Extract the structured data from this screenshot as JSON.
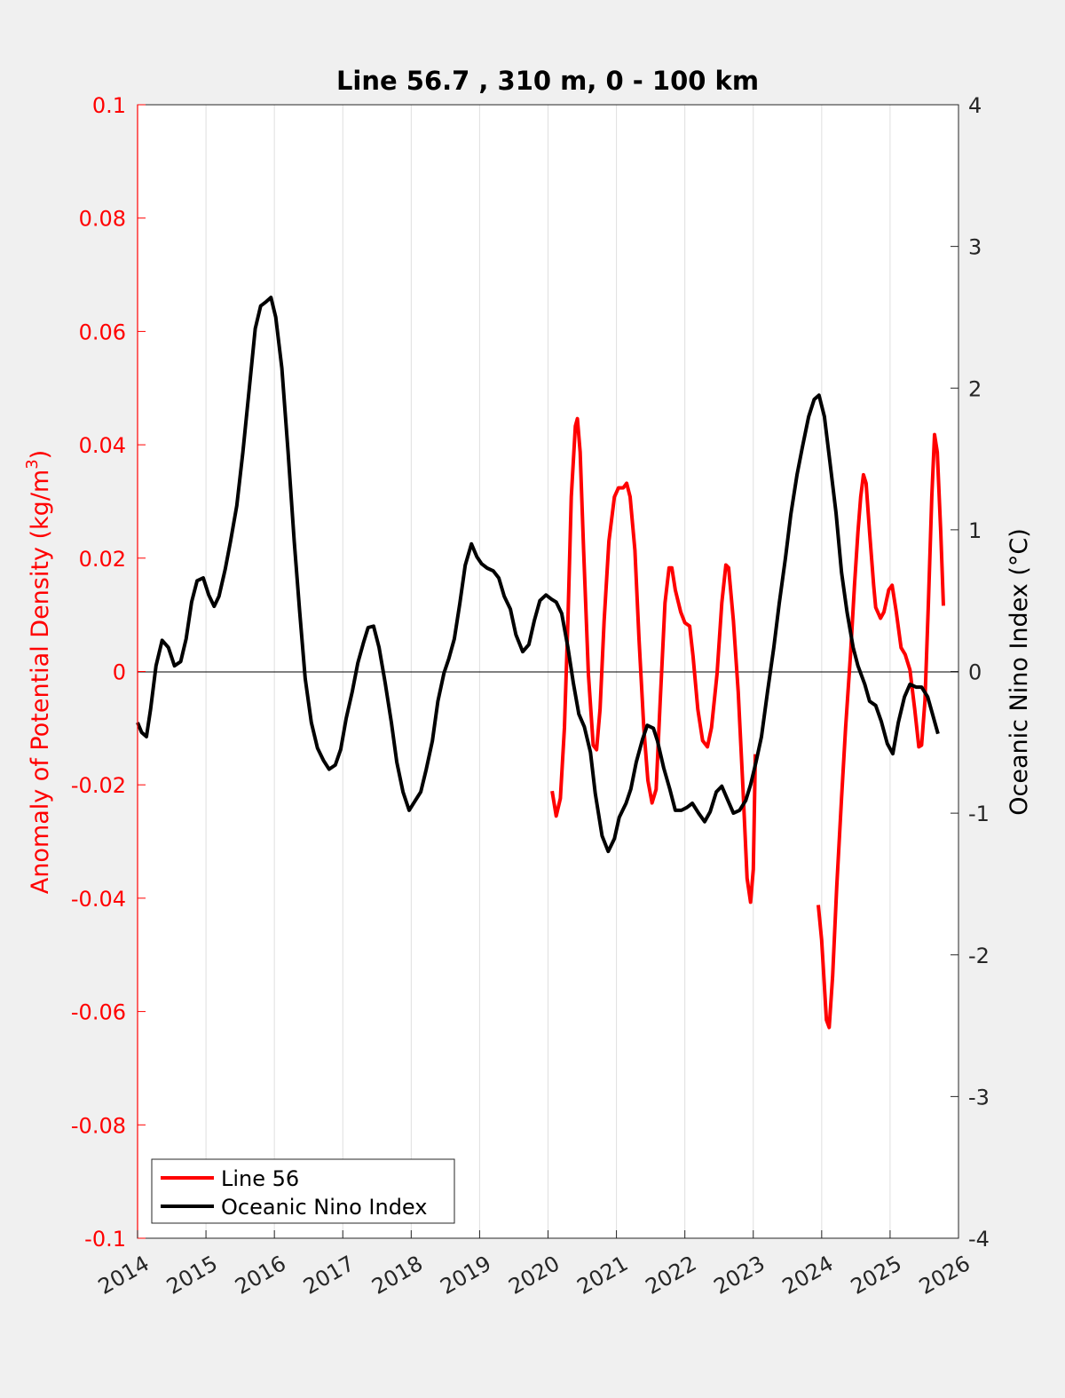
{
  "chart_data": {
    "type": "line",
    "title": "Line 56.7 , 310 m, 0 - 100 km",
    "xlabel": "",
    "ylabel_left": "Anomaly of Potential Density (kg/m^3)",
    "ylabel_left_main": "Anomaly of Potential Density (kg/m",
    "ylabel_left_sup": "3",
    "ylabel_left_close": ")",
    "ylabel_right": "Oceanic Nino Index (°C)",
    "xlim": [
      2014,
      2026
    ],
    "ylim_left": [
      -0.1,
      0.1
    ],
    "ylim_right": [
      -4,
      4
    ],
    "xticks": [
      "2014",
      "2015",
      "2016",
      "2017",
      "2018",
      "2019",
      "2020",
      "2021",
      "2022",
      "2023",
      "2024",
      "2025",
      "2026"
    ],
    "yticks_left": [
      "-0.1",
      "-0.08",
      "-0.06",
      "-0.04",
      "-0.02",
      "0",
      "0.02",
      "0.04",
      "0.06",
      "0.08",
      "0.1"
    ],
    "yticks_right": [
      "-4",
      "-3",
      "-2",
      "-1",
      "0",
      "1",
      "2",
      "3",
      "4"
    ],
    "grid": "vertical",
    "legend_position": "bottom-left",
    "colors": {
      "left_axis": "#ff0000",
      "line56": "#ff0000",
      "oni": "#000000"
    },
    "series": [
      {
        "name": "Line 56",
        "axis": "left",
        "segments": [
          [
            [
              2020.06,
              -0.0211
            ],
            [
              2020.12,
              -0.0255
            ],
            [
              2020.18,
              -0.0224
            ],
            [
              2020.24,
              -0.0099
            ],
            [
              2020.29,
              0.0089
            ],
            [
              2020.34,
              0.0308
            ],
            [
              2020.4,
              0.0433
            ],
            [
              2020.43,
              0.0446
            ],
            [
              2020.47,
              0.0387
            ],
            [
              2020.52,
              0.0214
            ],
            [
              2020.59,
              -0.0005
            ],
            [
              2020.66,
              -0.013
            ],
            [
              2020.71,
              -0.0138
            ],
            [
              2020.76,
              -0.0067
            ],
            [
              2020.82,
              0.0089
            ],
            [
              2020.89,
              0.023
            ],
            [
              2020.97,
              0.0308
            ],
            [
              2021.03,
              0.0324
            ],
            [
              2021.1,
              0.0324
            ],
            [
              2021.15,
              0.0332
            ],
            [
              2021.2,
              0.0308
            ],
            [
              2021.27,
              0.0214
            ],
            [
              2021.33,
              0.0058
            ],
            [
              2021.4,
              -0.0099
            ],
            [
              2021.46,
              -0.0192
            ],
            [
              2021.52,
              -0.0232
            ],
            [
              2021.58,
              -0.0208
            ],
            [
              2021.64,
              -0.0052
            ],
            [
              2021.71,
              0.0121
            ],
            [
              2021.77,
              0.0183
            ],
            [
              2021.81,
              0.0183
            ],
            [
              2021.86,
              0.0144
            ],
            [
              2021.94,
              0.0105
            ],
            [
              2022.0,
              0.0086
            ],
            [
              2022.07,
              0.008
            ],
            [
              2022.12,
              0.0027
            ],
            [
              2022.19,
              -0.0067
            ],
            [
              2022.26,
              -0.0122
            ],
            [
              2022.33,
              -0.0133
            ],
            [
              2022.39,
              -0.0099
            ],
            [
              2022.47,
              -0.0005
            ],
            [
              2022.54,
              0.0121
            ],
            [
              2022.6,
              0.0188
            ],
            [
              2022.64,
              0.0183
            ],
            [
              2022.71,
              0.0089
            ],
            [
              2022.78,
              -0.0036
            ],
            [
              2022.85,
              -0.0208
            ],
            [
              2022.91,
              -0.0365
            ],
            [
              2022.96,
              -0.0407
            ],
            [
              2023.0,
              -0.0349
            ],
            [
              2023.03,
              -0.0146
            ]
          ],
          [
            [
              2023.95,
              -0.0412
            ],
            [
              2024.0,
              -0.0474
            ],
            [
              2024.07,
              -0.0615
            ],
            [
              2024.11,
              -0.0628
            ],
            [
              2024.16,
              -0.0537
            ],
            [
              2024.22,
              -0.038
            ],
            [
              2024.29,
              -0.0224
            ],
            [
              2024.35,
              -0.0099
            ],
            [
              2024.42,
              0.0027
            ],
            [
              2024.48,
              0.0152
            ],
            [
              2024.53,
              0.0246
            ],
            [
              2024.57,
              0.0308
            ],
            [
              2024.61,
              0.0347
            ],
            [
              2024.65,
              0.0332
            ],
            [
              2024.7,
              0.0246
            ],
            [
              2024.76,
              0.0152
            ],
            [
              2024.79,
              0.0113
            ],
            [
              2024.86,
              0.0094
            ],
            [
              2024.91,
              0.0105
            ],
            [
              2024.98,
              0.0144
            ],
            [
              2025.03,
              0.0152
            ],
            [
              2025.09,
              0.0105
            ],
            [
              2025.16,
              0.0042
            ],
            [
              2025.22,
              0.003
            ],
            [
              2025.29,
              0.0003
            ],
            [
              2025.36,
              -0.0067
            ],
            [
              2025.42,
              -0.0133
            ],
            [
              2025.46,
              -0.013
            ],
            [
              2025.51,
              -0.0052
            ],
            [
              2025.56,
              0.0121
            ],
            [
              2025.61,
              0.0308
            ],
            [
              2025.65,
              0.0418
            ],
            [
              2025.69,
              0.0387
            ],
            [
              2025.74,
              0.0246
            ],
            [
              2025.78,
              0.0116
            ]
          ]
        ]
      },
      {
        "name": "Oceanic Nino Index",
        "axis": "right",
        "segments": [
          [
            [
              2014.0,
              -0.36
            ],
            [
              2014.06,
              -0.43
            ],
            [
              2014.13,
              -0.46
            ],
            [
              2014.19,
              -0.27
            ],
            [
              2014.27,
              0.04
            ],
            [
              2014.36,
              0.22
            ],
            [
              2014.45,
              0.17
            ],
            [
              2014.54,
              0.04
            ],
            [
              2014.63,
              0.07
            ],
            [
              2014.71,
              0.23
            ],
            [
              2014.79,
              0.49
            ],
            [
              2014.87,
              0.64
            ],
            [
              2014.96,
              0.66
            ],
            [
              2015.04,
              0.54
            ],
            [
              2015.12,
              0.46
            ],
            [
              2015.19,
              0.53
            ],
            [
              2015.28,
              0.72
            ],
            [
              2015.36,
              0.92
            ],
            [
              2015.45,
              1.17
            ],
            [
              2015.54,
              1.55
            ],
            [
              2015.63,
              1.98
            ],
            [
              2015.72,
              2.42
            ],
            [
              2015.8,
              2.58
            ],
            [
              2015.88,
              2.61
            ],
            [
              2015.95,
              2.64
            ],
            [
              2016.02,
              2.5
            ],
            [
              2016.11,
              2.14
            ],
            [
              2016.2,
              1.55
            ],
            [
              2016.29,
              0.92
            ],
            [
              2016.37,
              0.42
            ],
            [
              2016.45,
              -0.05
            ],
            [
              2016.54,
              -0.36
            ],
            [
              2016.63,
              -0.54
            ],
            [
              2016.72,
              -0.63
            ],
            [
              2016.8,
              -0.69
            ],
            [
              2016.89,
              -0.66
            ],
            [
              2016.97,
              -0.55
            ],
            [
              2017.05,
              -0.33
            ],
            [
              2017.14,
              -0.14
            ],
            [
              2017.22,
              0.06
            ],
            [
              2017.3,
              0.2
            ],
            [
              2017.37,
              0.31
            ],
            [
              2017.45,
              0.32
            ],
            [
              2017.53,
              0.17
            ],
            [
              2017.62,
              -0.08
            ],
            [
              2017.71,
              -0.36
            ],
            [
              2017.79,
              -0.64
            ],
            [
              2017.88,
              -0.85
            ],
            [
              2017.97,
              -0.98
            ],
            [
              2018.06,
              -0.91
            ],
            [
              2018.14,
              -0.85
            ],
            [
              2018.22,
              -0.69
            ],
            [
              2018.31,
              -0.49
            ],
            [
              2018.39,
              -0.21
            ],
            [
              2018.48,
              -0.01
            ],
            [
              2018.55,
              0.09
            ],
            [
              2018.63,
              0.23
            ],
            [
              2018.71,
              0.48
            ],
            [
              2018.79,
              0.75
            ],
            [
              2018.88,
              0.9
            ],
            [
              2018.96,
              0.81
            ],
            [
              2019.03,
              0.76
            ],
            [
              2019.11,
              0.73
            ],
            [
              2019.2,
              0.71
            ],
            [
              2019.28,
              0.66
            ],
            [
              2019.36,
              0.53
            ],
            [
              2019.45,
              0.44
            ],
            [
              2019.53,
              0.26
            ],
            [
              2019.63,
              0.14
            ],
            [
              2019.72,
              0.19
            ],
            [
              2019.8,
              0.36
            ],
            [
              2019.88,
              0.5
            ],
            [
              2019.97,
              0.54
            ],
            [
              2020.05,
              0.51
            ],
            [
              2020.12,
              0.49
            ],
            [
              2020.2,
              0.41
            ],
            [
              2020.29,
              0.17
            ],
            [
              2020.37,
              -0.08
            ],
            [
              2020.45,
              -0.3
            ],
            [
              2020.53,
              -0.39
            ],
            [
              2020.62,
              -0.57
            ],
            [
              2020.69,
              -0.86
            ],
            [
              2020.79,
              -1.16
            ],
            [
              2020.88,
              -1.27
            ],
            [
              2020.97,
              -1.18
            ],
            [
              2021.04,
              -1.03
            ],
            [
              2021.14,
              -0.93
            ],
            [
              2021.21,
              -0.83
            ],
            [
              2021.29,
              -0.64
            ],
            [
              2021.38,
              -0.48
            ],
            [
              2021.45,
              -0.38
            ],
            [
              2021.54,
              -0.4
            ],
            [
              2021.6,
              -0.49
            ],
            [
              2021.69,
              -0.68
            ],
            [
              2021.78,
              -0.83
            ],
            [
              2021.86,
              -0.98
            ],
            [
              2021.95,
              -0.98
            ],
            [
              2022.03,
              -0.96
            ],
            [
              2022.11,
              -0.93
            ],
            [
              2022.2,
              -1.0
            ],
            [
              2022.29,
              -1.06
            ],
            [
              2022.37,
              -0.99
            ],
            [
              2022.46,
              -0.85
            ],
            [
              2022.54,
              -0.81
            ],
            [
              2022.63,
              -0.91
            ],
            [
              2022.71,
              -1.0
            ],
            [
              2022.8,
              -0.98
            ],
            [
              2022.89,
              -0.91
            ],
            [
              2022.96,
              -0.8
            ],
            [
              2023.04,
              -0.64
            ],
            [
              2023.12,
              -0.46
            ],
            [
              2023.21,
              -0.14
            ],
            [
              2023.3,
              0.17
            ],
            [
              2023.38,
              0.48
            ],
            [
              2023.47,
              0.8
            ],
            [
              2023.55,
              1.11
            ],
            [
              2023.64,
              1.39
            ],
            [
              2023.72,
              1.59
            ],
            [
              2023.81,
              1.8
            ],
            [
              2023.89,
              1.92
            ],
            [
              2023.96,
              1.95
            ],
            [
              2024.04,
              1.8
            ],
            [
              2024.12,
              1.48
            ],
            [
              2024.21,
              1.12
            ],
            [
              2024.29,
              0.7
            ],
            [
              2024.37,
              0.42
            ],
            [
              2024.46,
              0.17
            ],
            [
              2024.53,
              0.04
            ],
            [
              2024.63,
              -0.09
            ],
            [
              2024.7,
              -0.21
            ],
            [
              2024.79,
              -0.24
            ],
            [
              2024.87,
              -0.35
            ],
            [
              2024.96,
              -0.51
            ],
            [
              2025.04,
              -0.58
            ],
            [
              2025.12,
              -0.36
            ],
            [
              2025.21,
              -0.18
            ],
            [
              2025.29,
              -0.09
            ],
            [
              2025.38,
              -0.11
            ],
            [
              2025.46,
              -0.11
            ],
            [
              2025.55,
              -0.18
            ],
            [
              2025.62,
              -0.3
            ],
            [
              2025.7,
              -0.44
            ]
          ]
        ]
      }
    ],
    "legend": [
      "Line 56",
      "Oceanic Nino Index"
    ]
  }
}
